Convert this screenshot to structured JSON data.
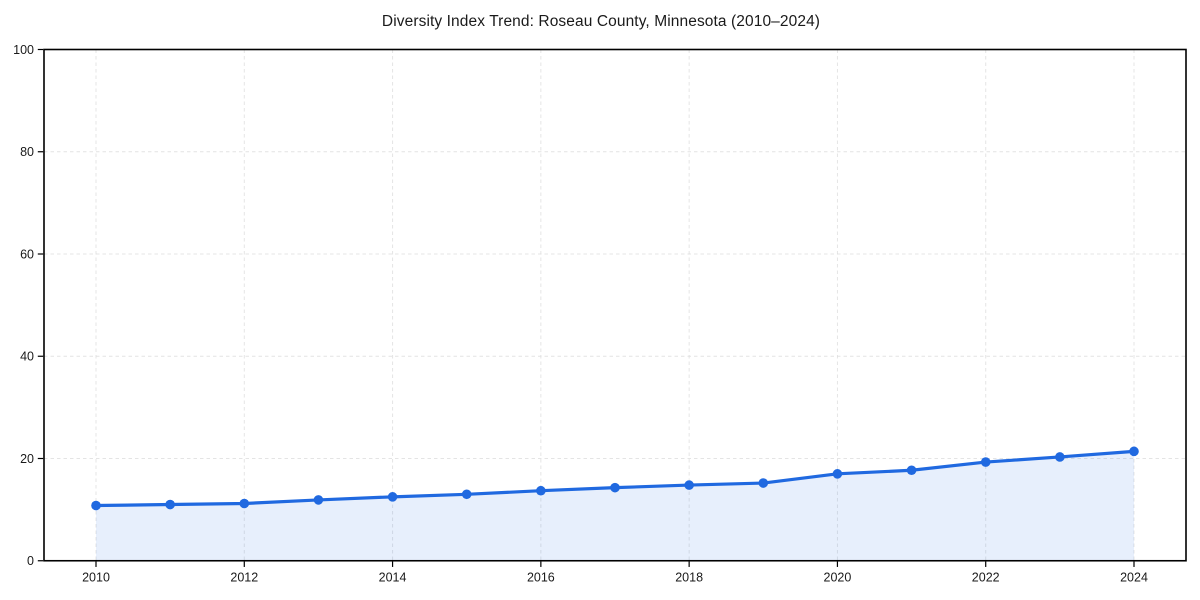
{
  "chart_data": {
    "type": "line",
    "title": "Diversity Index Trend: Roseau County, Minnesota (2010–2024)",
    "x": [
      2010,
      2011,
      2012,
      2013,
      2014,
      2015,
      2016,
      2017,
      2018,
      2019,
      2020,
      2021,
      2022,
      2023,
      2024
    ],
    "values": [
      10.8,
      11.0,
      11.2,
      11.9,
      12.5,
      13.0,
      13.7,
      14.3,
      14.8,
      15.2,
      17.0,
      17.7,
      19.3,
      20.3,
      21.4
    ],
    "xlabel": "",
    "ylabel": "",
    "ylim": [
      0,
      100
    ],
    "yticks": [
      0,
      20,
      40,
      60,
      80,
      100
    ],
    "xticks": [
      2010,
      2012,
      2014,
      2016,
      2018,
      2020,
      2022,
      2024
    ],
    "grid": true,
    "grid_style": "dashed",
    "legend": false,
    "marker": "circle",
    "colors": {
      "line": "#2069e0",
      "fill_tint": "#2069e0",
      "grid": "#dcdcdc",
      "axis": "#000000",
      "text": "#1a1a1a"
    }
  }
}
